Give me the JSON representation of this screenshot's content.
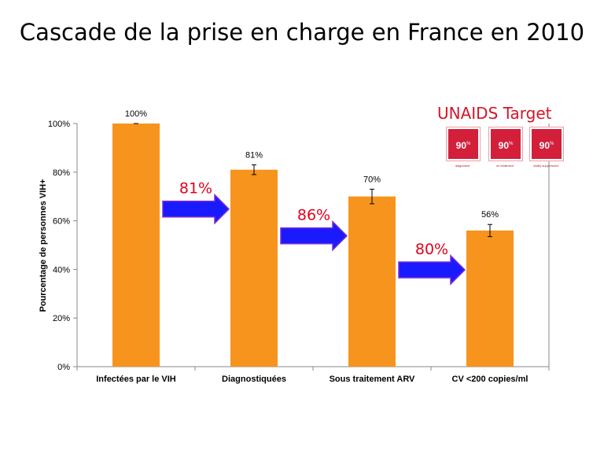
{
  "title": "Cascade de la prise en charge en France en 2010",
  "chart_data": {
    "type": "bar",
    "categories": [
      "Infectées par le VIH",
      "Diagnostiquées",
      "Sous traitement ARV",
      "CV <200 copies/ml"
    ],
    "values": [
      100,
      81,
      70,
      56
    ],
    "errors": [
      0,
      2,
      3,
      2.5
    ],
    "data_labels": [
      "100%",
      "81%",
      "70%",
      "56%"
    ],
    "ylabel": "Pourcentage de personnes VIH+",
    "ylim": [
      0,
      100
    ],
    "yticks": [
      0,
      20,
      40,
      60,
      80,
      100
    ],
    "ytick_labels": [
      "0%",
      "20%",
      "40%",
      "60%",
      "80%",
      "100%"
    ],
    "bar_color": "#f7941d",
    "transitions": [
      {
        "from": 0,
        "to": 1,
        "label": "81%"
      },
      {
        "from": 1,
        "to": 2,
        "label": "86%"
      },
      {
        "from": 2,
        "to": 3,
        "label": "80%"
      }
    ],
    "arrow_color": "#1a1aff",
    "transition_label_color": "#e4001b"
  },
  "unaids": {
    "title": "UNAIDS Target",
    "color": "#d41f3b",
    "targets": [
      {
        "value": "90",
        "caption": "diagnosed"
      },
      {
        "value": "90",
        "caption": "on treatment"
      },
      {
        "value": "90",
        "caption": "virally suppressed"
      }
    ]
  }
}
